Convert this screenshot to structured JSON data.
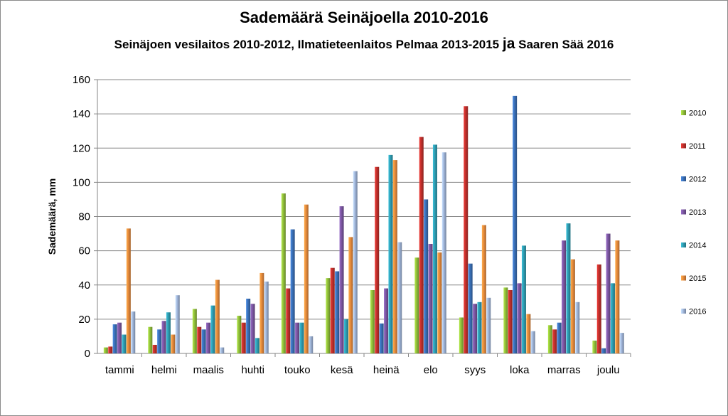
{
  "chart_data": {
    "type": "bar",
    "title": "Sademäärä Seinäjoella 2010-2016",
    "subtitle_pre": "Seinäjoen vesilaitos 2010-2012, Ilmatieteenlaitos Pelmaa 2013-2015",
    "subtitle_mid": "ja",
    "subtitle_post": "Saaren Sää 2016",
    "ylabel": "Sademäärä, mm",
    "xlabel": "",
    "ylim": [
      0,
      160
    ],
    "yticks": [
      0,
      20,
      40,
      60,
      80,
      100,
      120,
      140,
      160
    ],
    "grid": true,
    "legend_position": "right",
    "categories": [
      "tammi",
      "helmi",
      "maalis",
      "huhti",
      "touko",
      "kesä",
      "heinä",
      "elo",
      "syys",
      "loka",
      "marras",
      "joulu"
    ],
    "series": [
      {
        "name": "2010",
        "color": "#8fbc3a",
        "values": [
          3.5,
          15.5,
          26,
          22,
          93.5,
          44,
          37,
          56,
          21,
          38.5,
          16.5,
          7.5
        ]
      },
      {
        "name": "2011",
        "color": "#c0302c",
        "values": [
          4,
          5,
          15.5,
          18,
          38,
          50,
          109,
          126.5,
          144.5,
          37,
          14,
          52
        ]
      },
      {
        "name": "2012",
        "color": "#3a6fb6",
        "values": [
          17,
          14,
          14,
          32,
          72.5,
          48,
          17.5,
          90,
          52.5,
          150.5,
          18,
          3
        ]
      },
      {
        "name": "2013",
        "color": "#7a56a0",
        "values": [
          18,
          19,
          18,
          29,
          18,
          86,
          38,
          64,
          29,
          41,
          66,
          70
        ]
      },
      {
        "name": "2014",
        "color": "#2e9bb0",
        "values": [
          11,
          24,
          28,
          9,
          18,
          20,
          116,
          122,
          30,
          63,
          76,
          41
        ]
      },
      {
        "name": "2015",
        "color": "#e58a3c",
        "values": [
          73,
          11,
          43,
          47,
          87,
          68,
          113,
          59,
          75,
          23,
          55,
          66
        ]
      },
      {
        "name": "2016",
        "color": "#9fb4d8",
        "values": [
          24.5,
          34,
          3.5,
          42,
          10,
          106.5,
          65,
          117.5,
          32.5,
          13,
          30,
          12
        ]
      }
    ]
  }
}
